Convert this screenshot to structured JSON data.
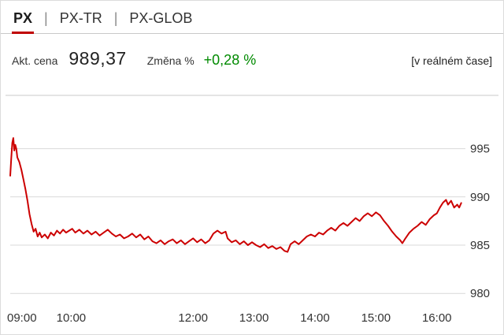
{
  "tabs": [
    {
      "label": "PX",
      "active": true
    },
    {
      "label": "PX-TR",
      "active": false
    },
    {
      "label": "PX-GLOB",
      "active": false
    }
  ],
  "tab_separator": "|",
  "quote": {
    "price_label": "Akt. cena",
    "price_value": "989,37",
    "change_label": "Změna %",
    "change_value": "+0,28 %",
    "realtime_note": "[v reálném čase]"
  },
  "colors": {
    "accent": "#c00000",
    "line": "#cc0001",
    "positive": "#008a00",
    "grid": "#d9d9d9",
    "separator": "#c9c9c9",
    "text": "#333333"
  },
  "chart_data": {
    "type": "line",
    "title": "PX index intraday",
    "xlabel": "",
    "ylabel": "",
    "x_unit": "time (hh:mm)",
    "x_ticks": [
      "09:00",
      "10:00",
      "12:00",
      "13:00",
      "14:00",
      "15:00",
      "16:00"
    ],
    "y_ticks": [
      980,
      985,
      990,
      995
    ],
    "ylim": [
      979.2,
      997.5
    ],
    "xlim_minutes": [
      540,
      985
    ],
    "grid": "horizontal-only",
    "legend": "none",
    "series": [
      {
        "name": "PX",
        "color": "#cc0001",
        "points": [
          [
            540,
            992.2
          ],
          [
            541,
            994.0
          ],
          [
            542,
            995.6
          ],
          [
            543,
            996.1
          ],
          [
            544,
            994.8
          ],
          [
            545,
            995.4
          ],
          [
            546,
            995.0
          ],
          [
            547,
            994.1
          ],
          [
            549,
            993.6
          ],
          [
            551,
            992.8
          ],
          [
            553,
            991.8
          ],
          [
            555,
            990.8
          ],
          [
            557,
            989.6
          ],
          [
            559,
            988.2
          ],
          [
            561,
            987.2
          ],
          [
            563,
            986.4
          ],
          [
            565,
            986.7
          ],
          [
            567,
            985.9
          ],
          [
            569,
            986.3
          ],
          [
            571,
            985.8
          ],
          [
            574,
            986.1
          ],
          [
            577,
            985.7
          ],
          [
            580,
            986.3
          ],
          [
            583,
            986.0
          ],
          [
            586,
            986.5
          ],
          [
            589,
            986.2
          ],
          [
            592,
            986.6
          ],
          [
            595,
            986.3
          ],
          [
            598,
            986.5
          ],
          [
            601,
            986.7
          ],
          [
            604,
            986.3
          ],
          [
            608,
            986.6
          ],
          [
            612,
            986.2
          ],
          [
            616,
            986.5
          ],
          [
            620,
            986.1
          ],
          [
            624,
            986.4
          ],
          [
            628,
            986.0
          ],
          [
            632,
            986.3
          ],
          [
            636,
            986.6
          ],
          [
            640,
            986.2
          ],
          [
            644,
            985.9
          ],
          [
            648,
            986.1
          ],
          [
            652,
            985.7
          ],
          [
            656,
            985.9
          ],
          [
            660,
            986.2
          ],
          [
            664,
            985.8
          ],
          [
            668,
            986.1
          ],
          [
            672,
            985.6
          ],
          [
            676,
            985.9
          ],
          [
            680,
            985.4
          ],
          [
            684,
            985.2
          ],
          [
            688,
            985.5
          ],
          [
            692,
            985.1
          ],
          [
            696,
            985.4
          ],
          [
            700,
            985.6
          ],
          [
            704,
            985.2
          ],
          [
            708,
            985.5
          ],
          [
            712,
            985.1
          ],
          [
            716,
            985.4
          ],
          [
            720,
            985.7
          ],
          [
            724,
            985.3
          ],
          [
            728,
            985.6
          ],
          [
            732,
            985.2
          ],
          [
            736,
            985.5
          ],
          [
            740,
            986.2
          ],
          [
            744,
            986.5
          ],
          [
            748,
            986.2
          ],
          [
            752,
            986.4
          ],
          [
            754,
            985.7
          ],
          [
            758,
            985.3
          ],
          [
            762,
            985.5
          ],
          [
            766,
            985.1
          ],
          [
            770,
            985.4
          ],
          [
            774,
            985.0
          ],
          [
            778,
            985.3
          ],
          [
            782,
            985.0
          ],
          [
            786,
            984.8
          ],
          [
            790,
            985.1
          ],
          [
            794,
            984.7
          ],
          [
            798,
            984.9
          ],
          [
            802,
            984.6
          ],
          [
            806,
            984.8
          ],
          [
            810,
            984.4
          ],
          [
            813,
            984.3
          ],
          [
            816,
            985.1
          ],
          [
            820,
            985.4
          ],
          [
            824,
            985.1
          ],
          [
            828,
            985.5
          ],
          [
            832,
            985.9
          ],
          [
            836,
            986.1
          ],
          [
            840,
            985.9
          ],
          [
            844,
            986.3
          ],
          [
            848,
            986.1
          ],
          [
            852,
            986.5
          ],
          [
            856,
            986.8
          ],
          [
            860,
            986.5
          ],
          [
            864,
            987.0
          ],
          [
            868,
            987.3
          ],
          [
            872,
            987.0
          ],
          [
            876,
            987.4
          ],
          [
            880,
            987.8
          ],
          [
            884,
            987.5
          ],
          [
            888,
            988.0
          ],
          [
            892,
            988.3
          ],
          [
            896,
            988.0
          ],
          [
            900,
            988.4
          ],
          [
            904,
            988.1
          ],
          [
            908,
            987.5
          ],
          [
            912,
            987.0
          ],
          [
            916,
            986.4
          ],
          [
            920,
            985.9
          ],
          [
            924,
            985.5
          ],
          [
            926,
            985.2
          ],
          [
            929,
            985.7
          ],
          [
            933,
            986.3
          ],
          [
            937,
            986.7
          ],
          [
            941,
            987.0
          ],
          [
            945,
            987.4
          ],
          [
            949,
            987.1
          ],
          [
            953,
            987.7
          ],
          [
            957,
            988.1
          ],
          [
            960,
            988.3
          ],
          [
            963,
            988.9
          ],
          [
            966,
            989.4
          ],
          [
            969,
            989.7
          ],
          [
            971,
            989.2
          ],
          [
            974,
            989.6
          ],
          [
            977,
            988.9
          ],
          [
            980,
            989.2
          ],
          [
            982,
            988.9
          ],
          [
            984,
            989.37
          ]
        ]
      }
    ]
  }
}
